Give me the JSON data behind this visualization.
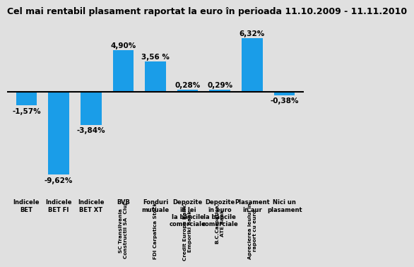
{
  "title": "Cel mai rentabil plasament raportat la euro în perioada 11.10.2009 - 11.11.2010",
  "values": [
    -1.57,
    -9.62,
    -3.84,
    4.9,
    3.56,
    0.28,
    0.29,
    6.32,
    -0.38
  ],
  "bar_value_labels": [
    "-1,57%",
    "-9,62%",
    "-3,84%",
    "4,90%",
    "3,56 %",
    "0,28%",
    "0,29%",
    "6,32%",
    "-0,38%"
  ],
  "plain_labels": [
    "Indicele\nBET",
    "Indicele\nBET FI",
    "Indicele\nBET XT",
    "BVB",
    "Fonduri\nmutuale",
    "Depozite\nîn lei\nla băncile\ncomerciale",
    "Depozite\nîn euro\nla băncile\ncomerciale",
    "Plasament\nîn aur",
    "Nici un\nplasament"
  ],
  "rotated_labels": [
    null,
    null,
    null,
    "SC Transilvania\nConstructii SA  Cluj",
    "FDI Carpatica Stock",
    "Credit Europe Bank,\nEmporiki Bank",
    "B.C.Carpatica,\nATE Bank",
    "Aprecierea leului în\nraport cu euro",
    null
  ],
  "bar_color": "#1a9de8",
  "bg_color": "#e0e0e0",
  "title_fontsize": 9.0,
  "ylim": [
    -11.5,
    8.5
  ]
}
